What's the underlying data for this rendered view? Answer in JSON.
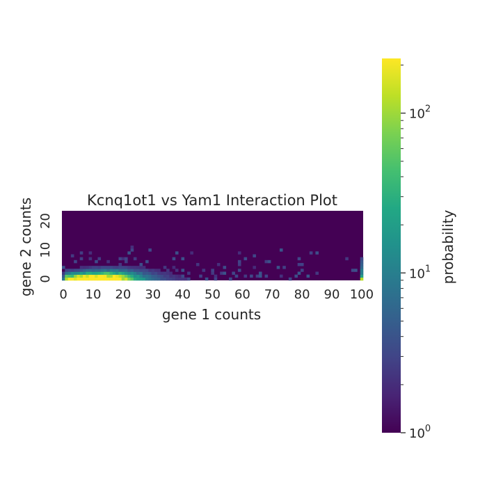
{
  "chart_data": {
    "type": "heatmap",
    "title": "Kcnq1ot1 vs Yam1 Interaction Plot",
    "xlabel": "gene 1 counts",
    "ylabel": "gene 2 counts",
    "x_range": [
      0,
      100
    ],
    "y_range": [
      0,
      23
    ],
    "x_ticks": [
      "0",
      "10",
      "20",
      "30",
      "40",
      "50",
      "60",
      "70",
      "80",
      "90",
      "100"
    ],
    "y_ticks": [
      "0",
      "10",
      "20"
    ],
    "colorscale": "viridis",
    "colorbar": {
      "label": "probability",
      "scale": "log",
      "range": [
        1,
        220
      ],
      "ticks": [
        {
          "base": "10",
          "exp": "0",
          "value": 1
        },
        {
          "base": "10",
          "exp": "1",
          "value": 10
        },
        {
          "base": "10",
          "exp": "2",
          "value": 100
        }
      ]
    },
    "description_of_density": "High values concentrated near gene 2 counts 0-5 and gene 1 counts 3-30, decaying with larger gene 1 counts; sparse values up to gene 2 ~12; column at gene 1 = 100 elevated (overflow bin); rest minimum.",
    "grid": false,
    "background_color": "#440154"
  }
}
